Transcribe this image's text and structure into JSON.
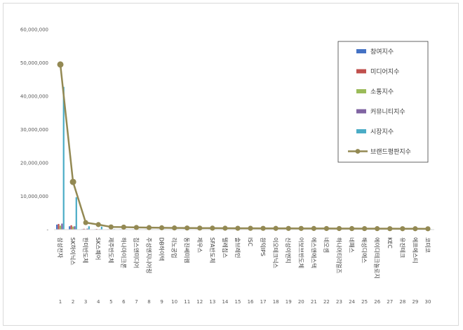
{
  "chart_data": {
    "type": "bar",
    "title": "",
    "xlabel": "",
    "ylabel": "",
    "ylim": [
      0,
      60000000
    ],
    "yticks": [
      "-",
      "10,000,000",
      "20,000,000",
      "30,000,000",
      "40,000,000",
      "50,000,000",
      "60,000,000"
    ],
    "ytick_values": [
      0,
      10000000,
      20000000,
      30000000,
      40000000,
      50000000,
      60000000
    ],
    "grid": false,
    "legend_position": "top-right",
    "ranks": [
      "1",
      "2",
      "3",
      "4",
      "5",
      "6",
      "7",
      "8",
      "9",
      "10",
      "11",
      "12",
      "13",
      "14",
      "15",
      "16",
      "17",
      "18",
      "19",
      "20",
      "21",
      "22",
      "23",
      "24",
      "25",
      "26",
      "27",
      "28",
      "29",
      "30"
    ],
    "categories": [
      "삼성전자",
      "SK하이닉스",
      "한미반도체",
      "SK스퀘어",
      "제주반도체",
      "하나마이크론",
      "칩스앤미디어",
      "주성엔지니어링",
      "DB하이텍",
      "리노공업",
      "동진쎄미켐",
      "제우스",
      "SFA반도체",
      "텔레칩스",
      "솔브레인",
      "ISC",
      "원익IPS",
      "이오테크닉스",
      "신성이엔지",
      "어보브반도체",
      "에스앤에스텍",
      "네오셈",
      "하나머티리얼즈",
      "네패스",
      "해성디에스",
      "에이디테크놀로지",
      "KEC",
      "유진테크",
      "에프에스티",
      "코미코"
    ],
    "series": [
      {
        "name": "참여지수",
        "kind": "bar",
        "color": "#4472c4",
        "values": [
          1500000,
          1000000,
          150000,
          120000,
          60000,
          50000,
          40000,
          40000,
          35000,
          35000,
          30000,
          30000,
          30000,
          25000,
          25000,
          25000,
          25000,
          20000,
          20000,
          20000,
          20000,
          20000,
          15000,
          15000,
          15000,
          15000,
          15000,
          15000,
          15000,
          15000
        ]
      },
      {
        "name": "미디어지수",
        "kind": "bar",
        "color": "#c0504d",
        "values": [
          1700000,
          1300000,
          250000,
          200000,
          90000,
          80000,
          60000,
          60000,
          50000,
          50000,
          45000,
          45000,
          40000,
          40000,
          40000,
          35000,
          35000,
          35000,
          30000,
          30000,
          30000,
          30000,
          25000,
          25000,
          25000,
          25000,
          25000,
          25000,
          25000,
          25000
        ]
      },
      {
        "name": "소통지수",
        "kind": "bar",
        "color": "#9bbb59",
        "values": [
          1200000,
          900000,
          120000,
          100000,
          50000,
          45000,
          40000,
          35000,
          35000,
          30000,
          30000,
          30000,
          25000,
          25000,
          25000,
          20000,
          20000,
          20000,
          20000,
          20000,
          15000,
          15000,
          15000,
          15000,
          15000,
          15000,
          15000,
          15000,
          15000,
          15000
        ]
      },
      {
        "name": "커뮤니티지수",
        "kind": "bar",
        "color": "#8064a2",
        "values": [
          1800000,
          1000000,
          300000,
          150000,
          60000,
          55000,
          50000,
          45000,
          40000,
          40000,
          35000,
          35000,
          30000,
          30000,
          30000,
          25000,
          25000,
          25000,
          25000,
          20000,
          20000,
          20000,
          20000,
          20000,
          20000,
          20000,
          20000,
          20000,
          20000,
          20000
        ]
      },
      {
        "name": "시장지수",
        "kind": "bar",
        "color": "#4bacc6",
        "values": [
          42800000,
          9700000,
          1000000,
          900000,
          150000,
          120000,
          100000,
          90000,
          80000,
          70000,
          65000,
          60000,
          55000,
          50000,
          50000,
          45000,
          45000,
          40000,
          40000,
          35000,
          35000,
          35000,
          30000,
          30000,
          30000,
          30000,
          25000,
          25000,
          25000,
          25000
        ]
      },
      {
        "name": "브랜드평판지수",
        "kind": "line",
        "color": "#938953",
        "values": [
          49500000,
          14300000,
          2100000,
          1500000,
          800000,
          750000,
          650000,
          600000,
          550000,
          500000,
          480000,
          460000,
          440000,
          420000,
          400000,
          390000,
          380000,
          370000,
          360000,
          350000,
          340000,
          330000,
          320000,
          310000,
          300000,
          290000,
          280000,
          270000,
          260000,
          250000
        ]
      }
    ]
  }
}
